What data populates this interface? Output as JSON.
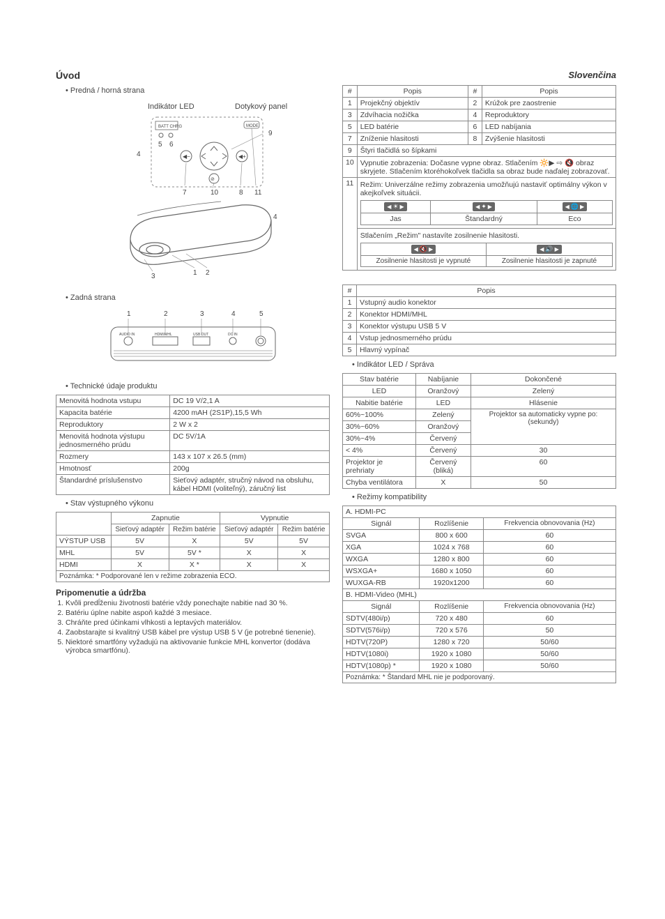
{
  "header": {
    "title": "Úvod",
    "language": "Slovenčina"
  },
  "front": {
    "bullet": "Predná / horná strana",
    "label_led": "Indikátor LED",
    "label_touch": "Dotykový panel"
  },
  "table_front": {
    "header_num": "#",
    "header_popis": "Popis",
    "rows": [
      [
        "1",
        "Projekčný objektív",
        "2",
        "Krúžok pre zaostrenie"
      ],
      [
        "3",
        "Zdvíhacia nožička",
        "4",
        "Reproduktory"
      ],
      [
        "5",
        "LED batérie",
        "6",
        "LED nabíjania"
      ],
      [
        "7",
        "Zníženie hlasitosti",
        "8",
        "Zvýšenie hlasitosti"
      ]
    ],
    "row9": [
      "9",
      "Štyri tlačidlá so šípkami"
    ],
    "row10": [
      "10",
      "Vypnutie zobrazenia: Dočasne vypne obraz. Stlačením 🔆▶ ⇨ 🔇 obraz skryjete. Stlačením ktoréhokoľvek tlačidla sa obraz bude naďalej zobrazovať."
    ],
    "row11_intro": [
      "11",
      "Režim: Univerzálne režimy zobrazenia umožňujú nastaviť optimálny výkon v akejkoľvek situácii."
    ],
    "modes": {
      "jas": "Jas",
      "std": "Štandardný",
      "eco": "Eco"
    },
    "row11_mid": "Stlačením „Režim\" nastavíte zosilnenie hlasitosti.",
    "vol_off": "Zosilnenie hlasitosti je vypnuté",
    "vol_on": "Zosilnenie hlasitosti je zapnuté"
  },
  "back": {
    "bullet": "Zadná strana"
  },
  "table_back": {
    "header_num": "#",
    "header_popis": "Popis",
    "rows": [
      [
        "1",
        "Vstupný audio konektor"
      ],
      [
        "2",
        "Konektor HDMI/MHL"
      ],
      [
        "3",
        "Konektor výstupu USB 5 V"
      ],
      [
        "4",
        "Vstup jednosmerného prúdu"
      ],
      [
        "5",
        "Hlavný vypínač"
      ]
    ]
  },
  "specs": {
    "bullet": "Technické údaje produktu",
    "rows": [
      [
        "Menovitá hodnota vstupu",
        "DC 19 V/2,1 A"
      ],
      [
        "Kapacita batérie",
        "4200 mAH (2S1P),15,5 Wh"
      ],
      [
        "Reproduktory",
        "2 W x 2"
      ],
      [
        "Menovitá hodnota výstupu jednosmerného prúdu",
        "DC 5V/1A"
      ],
      [
        "Rozmery",
        "143 x 107 x 26.5 (mm)"
      ],
      [
        "Hmotnosť",
        "200g"
      ],
      [
        "Štandardné príslušenstvo",
        "Sieťový adaptér, stručný návod na obsluhu, kábel HDMI (voliteľný), záručný list"
      ]
    ]
  },
  "output_state": {
    "bullet": "Stav výstupného výkonu",
    "h_on": "Zapnutie",
    "h_off": "Vypnutie",
    "h_adapter": "Sieťový adaptér",
    "h_batt": "Režim batérie",
    "rows": [
      [
        "VÝSTUP USB",
        "5V",
        "X",
        "5V",
        "5V"
      ],
      [
        "MHL",
        "5V",
        "5V *",
        "X",
        "X"
      ],
      [
        "HDMI",
        "X",
        "X *",
        "X",
        "X"
      ]
    ],
    "note": "Poznámka: * Podporované len v režime zobrazenia ECO."
  },
  "maintenance": {
    "title": "Pripomenutie a údržba",
    "items": [
      "Kvôli predĺženiu životnosti batérie vždy ponechajte nabitie nad 30 %.",
      "Batériu úplne nabite aspoň každé 3 mesiace.",
      "Chráňte pred účinkami vlhkosti a leptavých materiálov.",
      "Zaobstarajte si kvalitný USB kábel pre výstup USB 5 V (je potrebné tienenie).",
      "Niektoré smartfóny vyžadujú na aktivovanie funkcie MHL konvertor (dodáva výrobca smartfónu)."
    ]
  },
  "led_msg": {
    "bullet": "Indikátor LED / Správa",
    "h_state": "Stav batérie",
    "h_charging": "Nabíjanie",
    "h_done": "Dokončené",
    "h_led": "LED",
    "v_orange": "Oranžový",
    "v_green": "Zelený",
    "h_chglvl": "Nabitie batérie",
    "h_led2": "LED",
    "h_msg": "Hlásenie",
    "rows": [
      [
        "60%~100%",
        "Zelený"
      ],
      [
        "30%~60%",
        "Oranžový"
      ],
      [
        "30%~4%",
        "Červený"
      ]
    ],
    "auto_off": "Projektor sa automaticky vypne po: (sekundy)",
    "rows2": [
      [
        "< 4%",
        "Červený",
        "30"
      ],
      [
        "Projektor je prehriaty",
        "Červený (bliká)",
        "60"
      ],
      [
        "Chyba ventilátora",
        "X",
        "50"
      ]
    ]
  },
  "compat": {
    "bullet": "Režimy kompatibility",
    "sec_a": "A. HDMI-PC",
    "h_signal": "Signál",
    "h_res": "Rozlíšenie",
    "h_freq": "Frekvencia obnovovania (Hz)",
    "rows_a": [
      [
        "SVGA",
        "800 x 600",
        "60"
      ],
      [
        "XGA",
        "1024 x 768",
        "60"
      ],
      [
        "WXGA",
        "1280 x 800",
        "60"
      ],
      [
        "WSXGA+",
        "1680 x 1050",
        "60"
      ],
      [
        "WUXGA-RB",
        "1920x1200",
        "60"
      ]
    ],
    "sec_b": "B. HDMI-Video (MHL)",
    "rows_b": [
      [
        "SDTV(480i/p)",
        "720 x 480",
        "60"
      ],
      [
        "SDTV(576i/p)",
        "720 x 576",
        "50"
      ],
      [
        "HDTV(720P)",
        "1280 x 720",
        "50/60"
      ],
      [
        "HDTV(1080i)",
        "1920 x 1080",
        "50/60"
      ],
      [
        "HDTV(1080p) *",
        "1920 x 1080",
        "50/60"
      ]
    ],
    "note": "Poznámka: * Štandard MHL nie je podporovaný."
  }
}
